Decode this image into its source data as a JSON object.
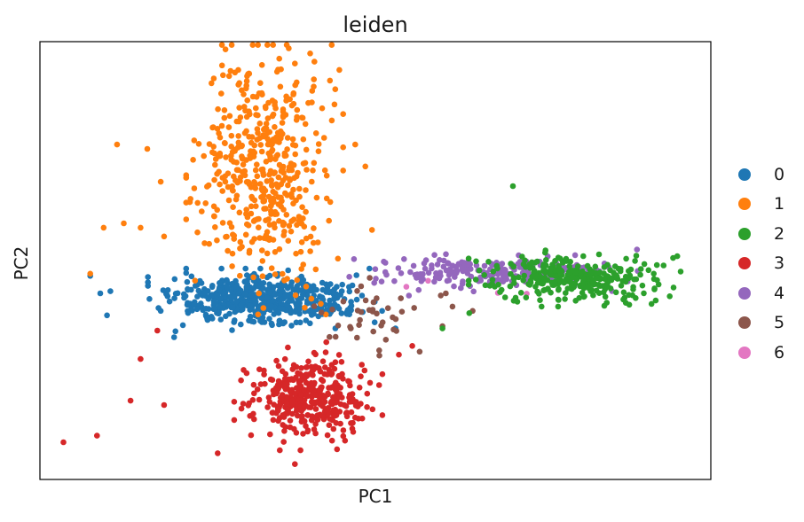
{
  "chart_data": {
    "type": "scatter",
    "title": "leiden",
    "xlabel": "PC1",
    "ylabel": "PC2",
    "xlim": [
      -10,
      10
    ],
    "ylim": [
      -10,
      10
    ],
    "grid": false,
    "axis_ticks": false,
    "legend_placement": "right",
    "series": [
      {
        "name": "0",
        "color": "#1f77b4",
        "centroid": [
          -3.4,
          -1.8
        ],
        "spread": [
          1.3,
          0.55
        ],
        "count": 520,
        "outliers": [
          [
            -8.5,
            -0.7
          ],
          [
            -8.2,
            -1.5
          ],
          [
            -8.0,
            -2.5
          ],
          [
            -7.9,
            -1.4
          ],
          [
            -6.4,
            -2.3
          ],
          [
            -6.0,
            -3.5
          ],
          [
            -5.7,
            -1.7
          ],
          [
            -1.0,
            -1.4
          ],
          [
            -0.8,
            -2.4
          ],
          [
            -0.4,
            -1.6
          ],
          [
            0.2,
            -2.3
          ],
          [
            0.6,
            -3.1
          ]
        ]
      },
      {
        "name": "1",
        "color": "#ff7f0e",
        "centroid": [
          -3.3,
          4.3
        ],
        "spread": [
          0.9,
          2.6
        ],
        "count": 480,
        "outliers": [
          [
            -8.5,
            -0.6
          ],
          [
            -8.1,
            1.5
          ],
          [
            -7.7,
            5.3
          ],
          [
            -7.5,
            1.7
          ],
          [
            -7.0,
            1.5
          ],
          [
            -6.8,
            5.1
          ],
          [
            -6.4,
            3.6
          ],
          [
            -6.3,
            1.1
          ],
          [
            -5.4,
            3.3
          ],
          [
            -2.4,
            9.0
          ],
          [
            -2.0,
            7.2
          ],
          [
            -1.3,
            6.4
          ],
          [
            -0.6,
            5.3
          ],
          [
            -0.3,
            4.3
          ],
          [
            -0.1,
            1.4
          ]
        ]
      },
      {
        "name": "2",
        "color": "#2ca02c",
        "centroid": [
          5.9,
          -0.8
        ],
        "spread": [
          1.2,
          0.5
        ],
        "count": 300,
        "outliers": [
          [
            4.1,
            3.4
          ],
          [
            8.3,
            -0.6
          ],
          [
            9.0,
            0.2
          ],
          [
            9.1,
            -0.5
          ],
          [
            2.0,
            -3.1
          ],
          [
            2.8,
            -2.4
          ]
        ]
      },
      {
        "name": "3",
        "color": "#d62728",
        "centroid": [
          -2.0,
          -6.2
        ],
        "spread": [
          0.85,
          0.95
        ],
        "count": 360,
        "outliers": [
          [
            -9.3,
            -8.3
          ],
          [
            -8.3,
            -8.0
          ],
          [
            -7.3,
            -6.4
          ],
          [
            -7.0,
            -4.5
          ],
          [
            -6.5,
            -3.2
          ],
          [
            -6.3,
            -6.6
          ],
          [
            -4.7,
            -8.8
          ],
          [
            -2.4,
            -9.3
          ],
          [
            0.7,
            -4.3
          ],
          [
            1.1,
            -3.9
          ]
        ]
      },
      {
        "name": "4",
        "color": "#9467bd",
        "centroid": [
          3.4,
          -0.5
        ],
        "spread": [
          1.7,
          0.35
        ],
        "count": 210,
        "outliers": [
          [
            0.3,
            -0.1
          ],
          [
            1.0,
            -1.6
          ],
          [
            7.8,
            0.5
          ]
        ]
      },
      {
        "name": "5",
        "color": "#8c564b",
        "centroid": [
          0.0,
          -2.4
        ],
        "spread": [
          0.75,
          0.9
        ],
        "count": 40,
        "outliers": [
          [
            2.1,
            -1.5
          ],
          [
            2.3,
            -2.1
          ],
          [
            2.9,
            -2.3
          ],
          [
            2.0,
            -3.0
          ]
        ]
      },
      {
        "name": "6",
        "color": "#e377c2",
        "centroid": [
          2.1,
          -1.3
        ],
        "spread": [
          1.2,
          0.2
        ],
        "count": 4,
        "outliers": []
      }
    ]
  }
}
